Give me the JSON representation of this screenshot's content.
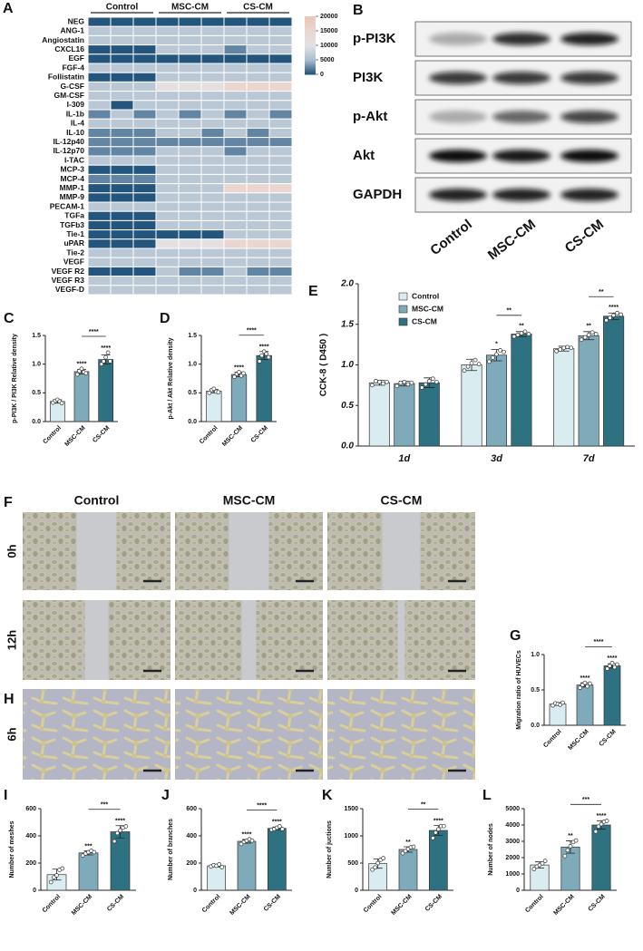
{
  "chart_data": [
    {
      "type": "heatmap",
      "panel_label": "A",
      "column_groups": [
        "Control",
        "MSC-CM",
        "CS-CM"
      ],
      "rows": [
        "NEG",
        "ANG-1",
        "Angiostatin",
        "CXCL16",
        "EGF",
        "FGF-4",
        "Follistatin",
        "G-CSF",
        "GM-CSF",
        "I-309",
        "IL-1b",
        "IL-4",
        "IL-10",
        "IL-12p40",
        "IL-12p70",
        "I-TAC",
        "MCP-3",
        "MCP-4",
        "MMP-1",
        "MMP-9",
        "PECAM-1",
        "TGFa",
        "TGFb3",
        "Tie-1",
        "uPAR",
        "Tie-2",
        "VEGF",
        "VEGF R2",
        "VEGF R3",
        "VEGF-D"
      ],
      "values": [
        [
          300,
          300,
          300,
          300,
          300,
          300,
          300,
          300,
          300
        ],
        [
          6500,
          6500,
          6500,
          6500,
          6500,
          6500,
          6500,
          6500,
          6500
        ],
        [
          6500,
          6500,
          6500,
          6500,
          6500,
          6500,
          6500,
          6500,
          6500
        ],
        [
          300,
          300,
          300,
          6500,
          6500,
          6500,
          2500,
          6500,
          6500
        ],
        [
          300,
          300,
          300,
          300,
          300,
          300,
          300,
          300,
          300
        ],
        [
          6500,
          6500,
          6500,
          6500,
          6500,
          6500,
          6500,
          6500,
          6500
        ],
        [
          300,
          300,
          300,
          6500,
          6500,
          6500,
          6500,
          6500,
          6500
        ],
        [
          6500,
          6500,
          6500,
          11000,
          11000,
          11000,
          15000,
          15000,
          15000
        ],
        [
          6500,
          6500,
          6500,
          6500,
          6500,
          6500,
          6500,
          6500,
          6500
        ],
        [
          6500,
          300,
          6500,
          6500,
          6500,
          6500,
          6500,
          6500,
          6500
        ],
        [
          2500,
          6500,
          2500,
          6500,
          2500,
          6500,
          2500,
          6500,
          2500
        ],
        [
          6500,
          6500,
          6500,
          6500,
          6500,
          6500,
          6500,
          6500,
          6500
        ],
        [
          2500,
          2500,
          2500,
          6500,
          6500,
          2500,
          6500,
          2500,
          6500
        ],
        [
          2500,
          2500,
          2500,
          2500,
          2500,
          2500,
          2500,
          2500,
          2500
        ],
        [
          2500,
          2500,
          2500,
          6500,
          6500,
          6500,
          2500,
          6500,
          6500
        ],
        [
          6500,
          6500,
          6500,
          6500,
          6500,
          6500,
          6500,
          6500,
          6500
        ],
        [
          300,
          300,
          300,
          6500,
          6500,
          6500,
          6500,
          6500,
          6500
        ],
        [
          2500,
          2500,
          2500,
          6500,
          6500,
          6500,
          6500,
          6500,
          6500
        ],
        [
          300,
          300,
          300,
          6500,
          6500,
          6500,
          15000,
          15000,
          15000
        ],
        [
          300,
          300,
          300,
          6500,
          6500,
          6500,
          6500,
          6500,
          6500
        ],
        [
          6500,
          6500,
          6500,
          6500,
          6500,
          6500,
          6500,
          6500,
          6500
        ],
        [
          300,
          300,
          300,
          6500,
          6500,
          6500,
          6500,
          6500,
          6500
        ],
        [
          300,
          300,
          300,
          6500,
          6500,
          6500,
          6500,
          6500,
          6500
        ],
        [
          300,
          300,
          300,
          300,
          300,
          300,
          6500,
          6500,
          6500
        ],
        [
          300,
          300,
          300,
          11000,
          11000,
          11000,
          15000,
          15000,
          15000
        ],
        [
          6500,
          6500,
          6500,
          6500,
          6500,
          6500,
          6500,
          6500,
          6500
        ],
        [
          6500,
          6500,
          6500,
          6500,
          6500,
          6500,
          6500,
          6500,
          6500
        ],
        [
          300,
          300,
          300,
          6500,
          2500,
          2500,
          6500,
          2500,
          2500
        ],
        [
          6500,
          6500,
          6500,
          6500,
          6500,
          6500,
          6500,
          6500,
          6500
        ],
        [
          6500,
          6500,
          6500,
          6500,
          6500,
          6500,
          6500,
          6500,
          6500
        ]
      ],
      "colorbar_lim": [
        0,
        20000
      ],
      "colorbar_ticks": [
        0,
        5000,
        10000,
        15000,
        20000
      ],
      "colors": [
        "#1c4e78",
        "#a9bccf",
        "#e2e1e4",
        "#ead6d0",
        "#e9c6b8"
      ]
    },
    {
      "type": "bar",
      "panel_label": "C",
      "ylabel": "p-PI3K / PI3K Relative density",
      "categories": [
        "Control",
        "MSC-CM",
        "CS-CM"
      ],
      "values": [
        0.35,
        0.87,
        1.08
      ],
      "errors": [
        0.03,
        0.04,
        0.08
      ],
      "points": [
        [
          0.33,
          0.36,
          0.38,
          0.35,
          0.32
        ],
        [
          0.82,
          0.88,
          0.92,
          0.86,
          0.84
        ],
        [
          1.0,
          1.05,
          1.12,
          1.2,
          1.05
        ]
      ],
      "significance": [
        null,
        "****",
        "****"
      ],
      "bracket_label": "****",
      "colors": [
        "#d9ecf0",
        "#7eaab9",
        "#2e7282"
      ],
      "ylim": [
        0,
        1.5
      ],
      "yticks": [
        {
          "value": 0,
          "label": "0.0"
        },
        0.5,
        {
          "value": 1,
          "label": "1.0"
        },
        1.5
      ]
    },
    {
      "type": "bar",
      "panel_label": "D",
      "ylabel": "p-Akt / Akt Relative density",
      "categories": [
        "Control",
        "MSC-CM",
        "CS-CM"
      ],
      "values": [
        0.53,
        0.82,
        1.15
      ],
      "errors": [
        0.03,
        0.04,
        0.07
      ],
      "points": [
        [
          0.5,
          0.55,
          0.57,
          0.52,
          0.51
        ],
        [
          0.78,
          0.83,
          0.86,
          0.8,
          0.84
        ],
        [
          1.05,
          1.15,
          1.22,
          1.18,
          1.12
        ]
      ],
      "significance": [
        null,
        "****",
        "****"
      ],
      "bracket_label": "****",
      "colors": [
        "#d9ecf0",
        "#7eaab9",
        "#2e7282"
      ],
      "ylim": [
        0,
        1.5
      ],
      "yticks": [
        {
          "value": 0,
          "label": "0.0"
        },
        0.5,
        {
          "value": 1,
          "label": "1.0"
        },
        1.5
      ]
    },
    {
      "type": "grouped_bar",
      "panel_label": "E",
      "ylabel": "CCK-8 ( D450 )",
      "legend": "upper left",
      "categories": [
        "1d",
        "3d",
        "7d"
      ],
      "series": [
        {
          "name": "Control",
          "color": "#d9ecf0",
          "values": [
            0.78,
            1.0,
            1.2
          ],
          "errors": [
            0.03,
            0.07,
            0.03
          ],
          "points": [
            [
              0.75,
              0.8,
              0.79,
              0.77,
              0.79
            ],
            [
              0.93,
              0.98,
              1.02,
              1.06,
              1.01
            ],
            [
              1.17,
              1.19,
              1.21,
              1.22,
              1.21
            ]
          ]
        },
        {
          "name": "MSC-CM",
          "color": "#7eaab9",
          "values": [
            0.77,
            1.12,
            1.36
          ],
          "errors": [
            0.03,
            0.07,
            0.05
          ],
          "points": [
            [
              0.74,
              0.78,
              0.79,
              0.76,
              0.78
            ],
            [
              1.04,
              1.09,
              1.13,
              1.18,
              1.16
            ],
            [
              1.31,
              1.34,
              1.37,
              1.4,
              1.38
            ]
          ],
          "significance": [
            null,
            "*",
            "**"
          ]
        },
        {
          "name": "CS-CM",
          "color": "#2e7282",
          "values": [
            0.78,
            1.38,
            1.6
          ],
          "errors": [
            0.06,
            0.03,
            0.04
          ],
          "points": [
            [
              0.72,
              0.76,
              0.8,
              0.83,
              0.79
            ],
            [
              1.35,
              1.37,
              1.39,
              1.41,
              1.38
            ],
            [
              1.55,
              1.58,
              1.61,
              1.64,
              1.62
            ]
          ],
          "significance": [
            null,
            "**",
            "****"
          ]
        }
      ],
      "bracket_labels": [
        null,
        "**",
        "**"
      ],
      "ylim": [
        0,
        2
      ],
      "yticks": [
        {
          "value": 0,
          "label": "0.0"
        },
        0.5,
        {
          "value": 1,
          "label": "1.0"
        },
        1.5,
        {
          "value": 2,
          "label": "2.0"
        }
      ]
    },
    {
      "type": "bar",
      "panel_label": "G",
      "ylabel": "Migration ratio of HUVECs",
      "categories": [
        "Control",
        "MSC-CM",
        "CS-CM"
      ],
      "values": [
        0.3,
        0.57,
        0.84
      ],
      "errors": [
        0.02,
        0.03,
        0.03
      ],
      "points": [
        [
          0.28,
          0.31,
          0.3,
          0.29,
          0.32
        ],
        [
          0.53,
          0.57,
          0.6,
          0.55,
          0.59
        ],
        [
          0.8,
          0.84,
          0.88,
          0.82,
          0.86
        ]
      ],
      "significance": [
        null,
        "****",
        "****"
      ],
      "bracket_label": "****",
      "colors": [
        "#d9ecf0",
        "#7eaab9",
        "#2e7282"
      ],
      "ylim": [
        0,
        1
      ],
      "yticks": [
        {
          "value": 0,
          "label": "0.0"
        },
        0.5,
        {
          "value": 1,
          "label": "1.0"
        }
      ]
    },
    {
      "type": "bar",
      "panel_label": "I",
      "ylabel": "Number of meshes",
      "categories": [
        "Control",
        "MSC-CM",
        "CS-CM"
      ],
      "values": [
        115,
        275,
        430
      ],
      "errors": [
        40,
        15,
        45
      ],
      "points": [
        [
          60,
          95,
          110,
          150,
          160
        ],
        [
          255,
          270,
          280,
          290,
          280
        ],
        [
          360,
          420,
          440,
          460,
          470
        ]
      ],
      "significance": [
        null,
        "***",
        "****"
      ],
      "bracket_label": "***",
      "colors": [
        "#d9ecf0",
        "#7eaab9",
        "#2e7282"
      ],
      "ylim": [
        0,
        600
      ],
      "yticks": [
        0,
        200,
        400,
        600
      ]
    },
    {
      "type": "bar",
      "panel_label": "J",
      "ylabel": "Number of branches",
      "categories": [
        "Control",
        "MSC-CM",
        "CS-CM"
      ],
      "values": [
        180,
        360,
        455
      ],
      "errors": [
        8,
        13,
        10
      ],
      "points": [
        [
          175,
          185,
          180,
          190,
          170
        ],
        [
          340,
          355,
          365,
          375,
          365
        ],
        [
          445,
          450,
          460,
          470,
          450
        ]
      ],
      "significance": [
        null,
        "****",
        "****"
      ],
      "bracket_label": "****",
      "colors": [
        "#d9ecf0",
        "#7eaab9",
        "#2e7282"
      ],
      "ylim": [
        0,
        600
      ],
      "yticks": [
        0,
        200,
        400,
        600
      ]
    },
    {
      "type": "bar",
      "panel_label": "K",
      "ylabel": "Number of juctions",
      "categories": [
        "Control",
        "MSC-CM",
        "CS-CM"
      ],
      "values": [
        490,
        750,
        1100
      ],
      "errors": [
        85,
        50,
        90
      ],
      "points": [
        [
          380,
          420,
          500,
          560,
          590
        ],
        [
          680,
          720,
          760,
          790,
          800
        ],
        [
          960,
          1060,
          1120,
          1180,
          1180
        ]
      ],
      "significance": [
        null,
        "**",
        "****"
      ],
      "bracket_label": "**",
      "colors": [
        "#d9ecf0",
        "#7eaab9",
        "#2e7282"
      ],
      "ylim": [
        0,
        1500
      ],
      "yticks": [
        0,
        500,
        1000,
        1500
      ]
    },
    {
      "type": "bar",
      "panel_label": "L",
      "ylabel": "Number of nodes",
      "categories": [
        "Control",
        "MSC-CM",
        "CS-CM"
      ],
      "values": [
        1550,
        2650,
        4000
      ],
      "errors": [
        190,
        380,
        260
      ],
      "points": [
        [
          1300,
          1450,
          1550,
          1650,
          1800
        ],
        [
          2100,
          2450,
          2700,
          2950,
          3050
        ],
        [
          3600,
          3900,
          4050,
          4200,
          4250
        ]
      ],
      "significance": [
        null,
        "**",
        "****"
      ],
      "bracket_label": "***",
      "colors": [
        "#d9ecf0",
        "#7eaab9",
        "#2e7282"
      ],
      "ylim": [
        0,
        5000
      ],
      "yticks": [
        0,
        1000,
        2000,
        3000,
        4000,
        5000
      ]
    }
  ],
  "blot": {
    "panel_label": "B",
    "rows": [
      "p-PI3K",
      "PI3K",
      "p-Akt",
      "Akt",
      "GAPDH"
    ],
    "lanes": [
      "Control",
      "MSC-CM",
      "CS-CM"
    ]
  },
  "micrographs": {
    "panel_labels": [
      "F",
      "H"
    ],
    "columns": [
      "Control",
      "MSC-CM",
      "CS-CM"
    ],
    "rows": [
      "0h",
      "12h",
      "6h"
    ]
  }
}
